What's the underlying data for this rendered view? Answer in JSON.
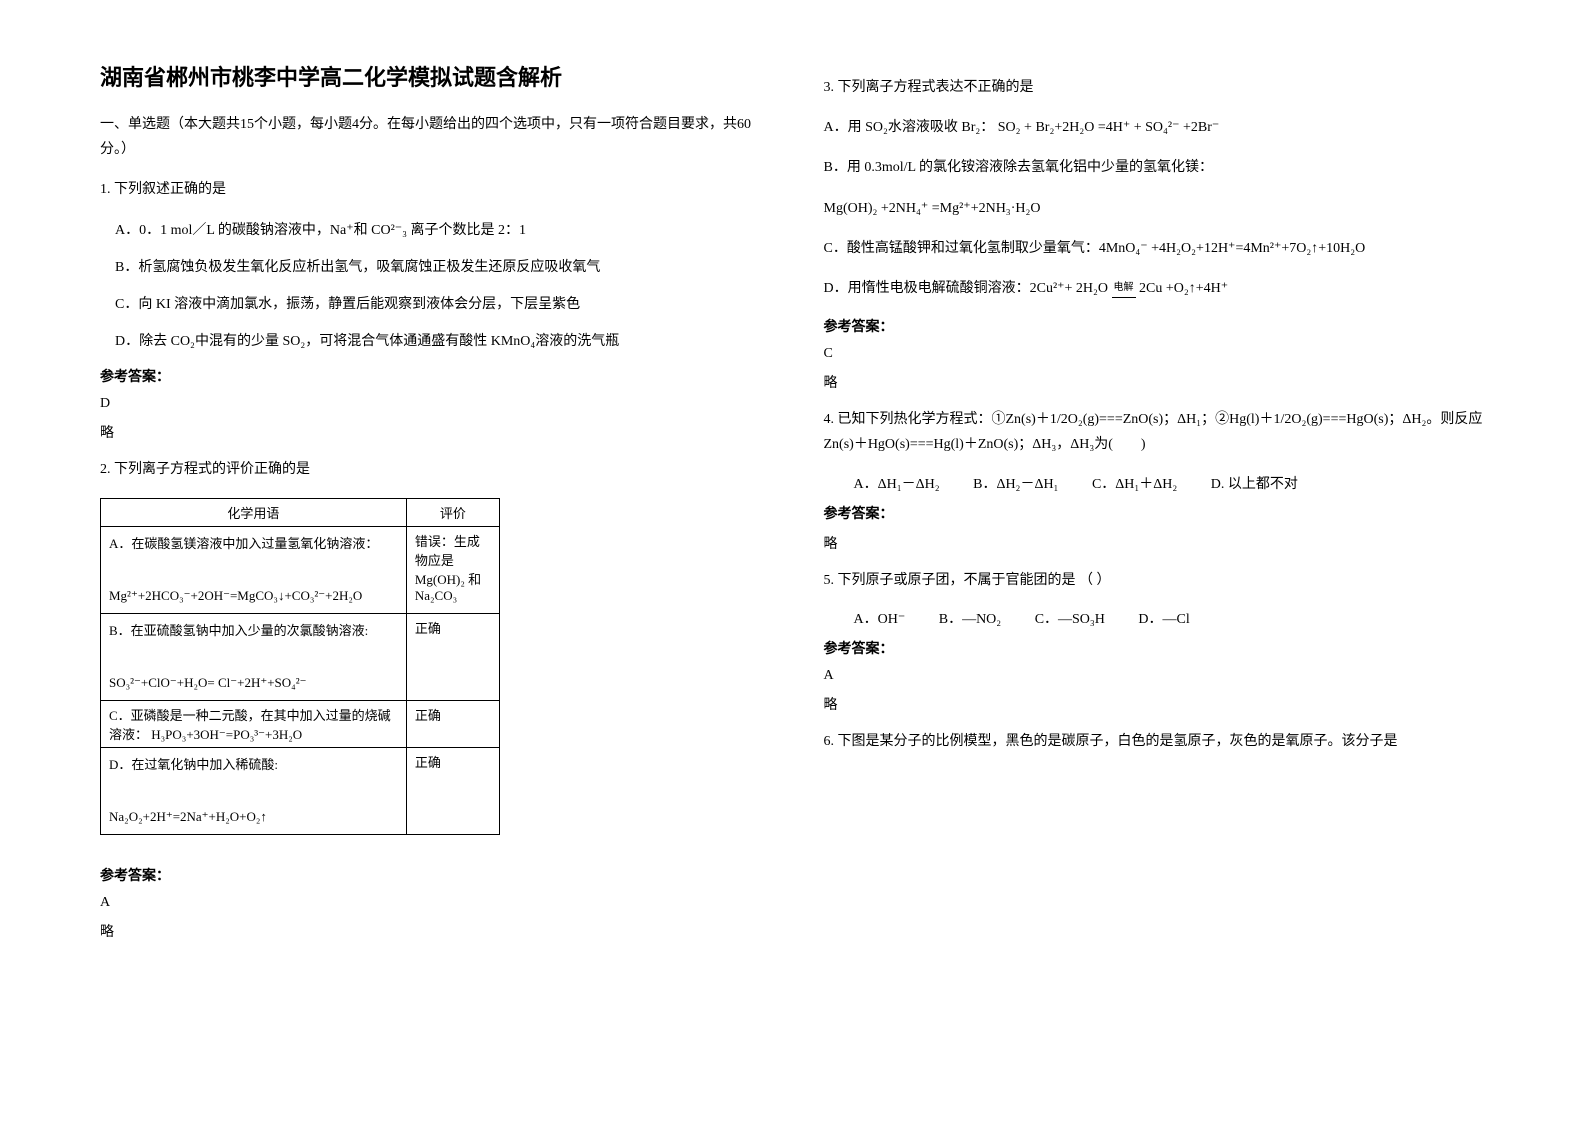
{
  "title": "湖南省郴州市桃李中学高二化学模拟试题含解析",
  "section1": "一、单选题（本大题共15个小题，每小题4分。在每小题给出的四个选项中，只有一项符合题目要求，共60分。）",
  "q1": {
    "stem": "1. 下列叙述正确的是",
    "optA": "A．0．1 mol／L 的碳酸钠溶液中，Na⁺和 CO²⁻₃ 离子个数比是 2：1",
    "optB": "B．析氢腐蚀负极发生氧化反应析出氢气，吸氧腐蚀正极发生还原反应吸收氧气",
    "optC": "C．向 KI 溶液中滴加氯水，振荡，静置后能观察到液体会分层，下层呈紫色",
    "optD": "D．除去 CO₂中混有的少量 SO₂，可将混合气体通通盛有酸性 KMnO₄溶液的洗气瓶",
    "answerLabel": "参考答案：",
    "answer": "D",
    "note": "略"
  },
  "q2": {
    "stem": "2. 下列离子方程式的评价正确的是",
    "headers": [
      "化学用语",
      "评价"
    ],
    "rows": [
      [
        "A．在碳酸氢镁溶液中加入过量氢氧化钠溶液：\n\nMg²⁺+2HCO₃⁻+2OH⁻=MgCO₃↓+CO₃²⁻+2H₂O",
        "错误：生成物应是Mg(OH)₂ 和Na₂CO₃"
      ],
      [
        "B．在亚硫酸氢钠中加入少量的次氯酸钠溶液:\n\nSO₃²⁻+ClO⁻+H₂O= Cl⁻+2H⁺+SO₄²⁻",
        "正确"
      ],
      [
        "C．亚磷酸是一种二元酸，在其中加入过量的烧碱溶液：   H₃PO₃+3OH⁻=PO₃³⁻+3H₂O",
        "正确"
      ],
      [
        "D．在过氧化钠中加入稀硫酸:\n\nNa₂O₂+2H⁺=2Na⁺+H₂O+O₂↑",
        "正确"
      ]
    ],
    "answerLabel": "参考答案：",
    "answer": "A",
    "note": "略"
  },
  "q3": {
    "stem": "3. 下列离子方程式表达不正确的是",
    "optA": "A．用 SO₂水溶液吸收 Br₂：   SO₂ + Br₂+2H₂O =4H⁺ + SO₄²⁻ +2Br⁻",
    "optB": "B．用 0.3mol/L 的氯化铵溶液除去氢氧化铝中少量的氢氧化镁：",
    "optB2": "Mg(OH)₂ +2NH₄⁺ =Mg²⁺+2NH₃·H₂O",
    "optC": "C．酸性高锰酸钾和过氧化氢制取少量氧气：4MnO₄⁻ +4H₂O₂+12H⁺=4Mn²⁺+7O₂↑+10H₂O",
    "optD": "D．用惰性电极电解硫酸铜溶液：2Cu²⁺+ 2H₂O ",
    "optD2": " 2Cu +O₂↑+4H⁺",
    "answerLabel": "参考答案：",
    "answer": "C",
    "note": "略"
  },
  "q4": {
    "stem": "4. 已知下列热化学方程式：①Zn(s)＋1/2O₂(g)===ZnO(s)；ΔH₁；②Hg(l)＋1/2O₂(g)===HgO(s)；ΔH₂。则反应 Zn(s)＋HgO(s)===Hg(l)＋ZnO(s)；ΔH₃，ΔH₃为(　　)",
    "optA": "A．ΔH₁－ΔH₂",
    "optB": "B．ΔH₂－ΔH₁",
    "optC": "C．ΔH₁＋ΔH₂",
    "optD": "D. 以上都不对",
    "answerLabel": "参考答案：",
    "note": "略"
  },
  "q5": {
    "stem": "5. 下列原子或原子团，不属于官能团的是              （  ）",
    "optA": "A．OH⁻",
    "optB": "B．—NO₂",
    "optC": "C．—SO₃H",
    "optD": "D．—Cl",
    "answerLabel": "参考答案：",
    "answer": "A",
    "note": "略"
  },
  "q6": {
    "stem": "6. 下图是某分子的比例模型，黑色的是碳原子，白色的是氢原子，灰色的是氧原子。该分子是"
  },
  "eqSymbol": "电解"
}
